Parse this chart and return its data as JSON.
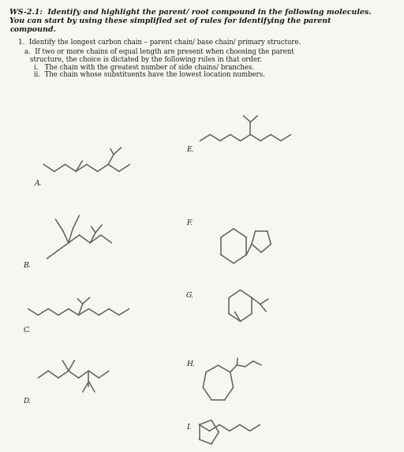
{
  "bg_color": "#f7f7f2",
  "line_color": "#666055",
  "text_color": "#1a1a1a",
  "fs_title": 6.8,
  "fs_rule": 6.2,
  "fs_label": 6.5,
  "lw": 1.1,
  "labels": [
    "A.",
    "B.",
    "C.",
    "D.",
    "E.",
    "F.",
    "G.",
    "H.",
    "I."
  ]
}
